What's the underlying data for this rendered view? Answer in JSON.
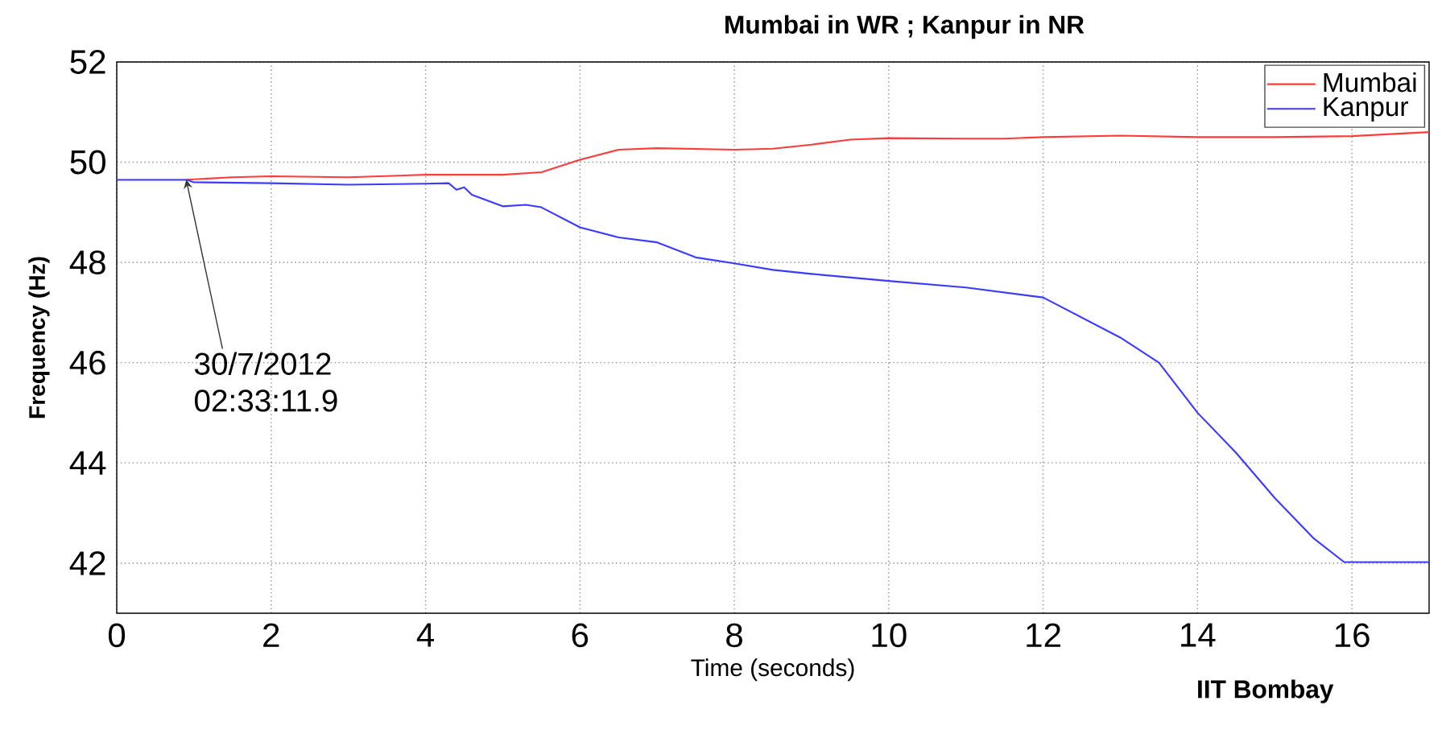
{
  "chart_data": {
    "type": "line",
    "title": "Mumbai in WR ; Kanpur in NR",
    "xlabel": "Time (seconds)",
    "ylabel": "Frequency (Hz)",
    "xlim": [
      0,
      17
    ],
    "ylim": [
      41,
      52
    ],
    "xticks": [
      0,
      2,
      4,
      6,
      8,
      10,
      12,
      14,
      16
    ],
    "yticks": [
      42,
      44,
      46,
      48,
      50,
      52
    ],
    "grid": true,
    "legend": "top right",
    "line_style": "solid",
    "annotations": [
      {
        "text": "30/7/2012 02:33:11.9",
        "x": 0.9,
        "y": 49.65
      },
      "IIT Bombay"
    ],
    "series": [
      {
        "name": "Mumbai",
        "color": "#ff3b3b",
        "x": [
          0.9,
          1.5,
          2,
          3,
          4,
          5,
          5.5,
          6,
          6.5,
          7,
          8,
          8.5,
          9,
          9.5,
          10,
          11,
          11.5,
          12,
          13,
          14,
          15,
          16,
          17
        ],
        "values": [
          49.65,
          49.7,
          49.72,
          49.7,
          49.75,
          49.75,
          49.8,
          50.05,
          50.25,
          50.28,
          50.25,
          50.27,
          50.35,
          50.45,
          50.48,
          50.47,
          50.47,
          50.5,
          50.53,
          50.5,
          50.5,
          50.52,
          50.6
        ]
      },
      {
        "name": "Kanpur",
        "color": "#3b3bff",
        "x": [
          0,
          0.9,
          1,
          2,
          3,
          4,
          4.3,
          4.4,
          4.5,
          4.6,
          5,
          5.3,
          5.5,
          6,
          6.5,
          7,
          7.5,
          8,
          8.5,
          9,
          10,
          11,
          12,
          12.5,
          13,
          13.5,
          14,
          14.5,
          15,
          15.5,
          15.9,
          17
        ],
        "values": [
          49.65,
          49.65,
          49.6,
          49.58,
          49.55,
          49.57,
          49.58,
          49.45,
          49.5,
          49.35,
          49.12,
          49.15,
          49.1,
          48.7,
          48.5,
          48.4,
          48.1,
          47.98,
          47.85,
          47.77,
          47.63,
          47.5,
          47.3,
          46.9,
          46.5,
          46.0,
          45.0,
          44.2,
          43.3,
          42.5,
          42.02,
          42.02
        ]
      }
    ]
  }
}
